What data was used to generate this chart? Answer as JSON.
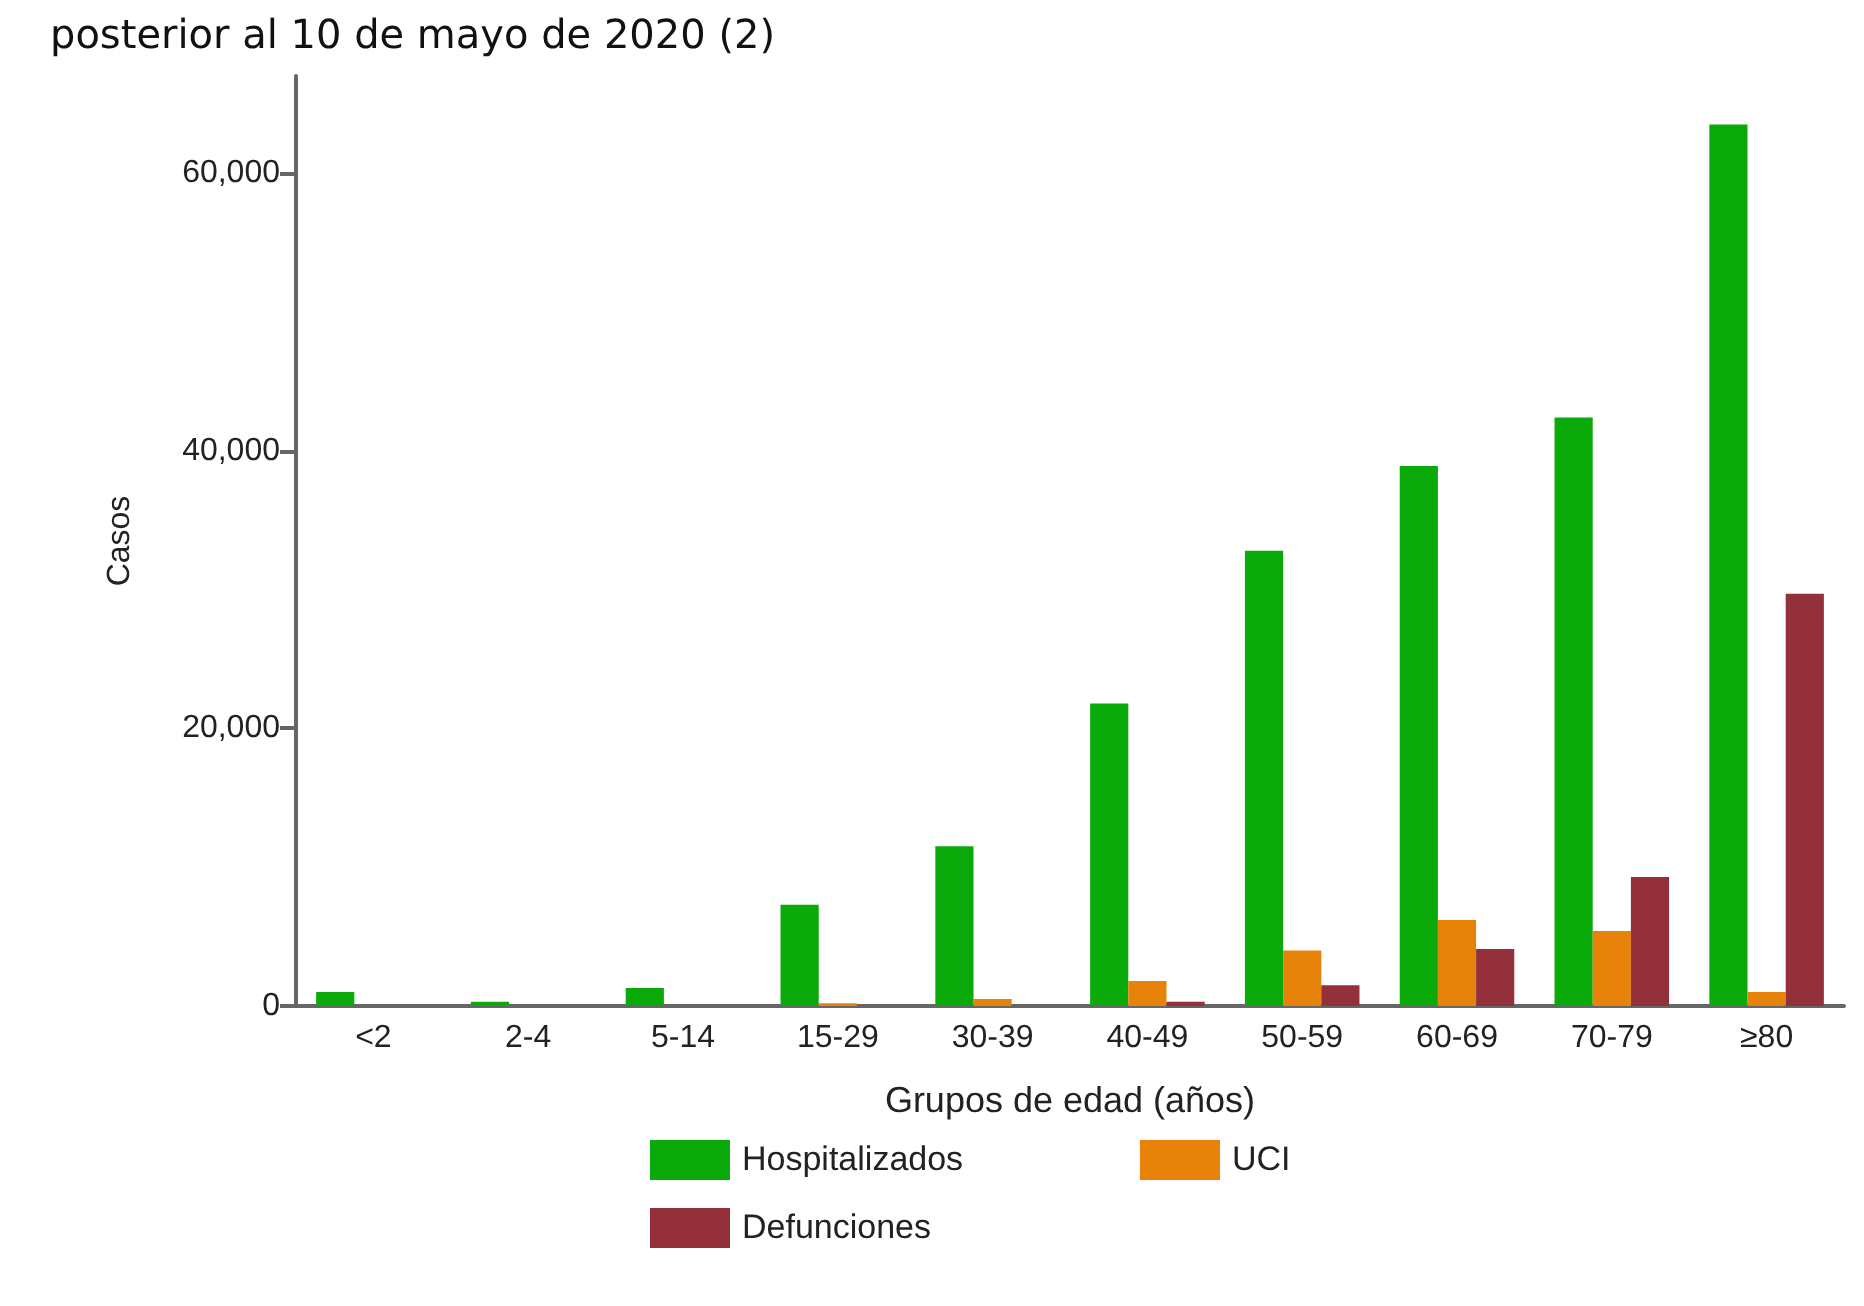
{
  "chart_data": {
    "type": "bar",
    "title": "posterior al 10 de mayo de 2020 (2)",
    "xlabel": "Grupos de edad (años)",
    "ylabel": "Casos",
    "categories": [
      "<2",
      "2-4",
      "5-14",
      "15-29",
      "30-39",
      "40-49",
      "50-59",
      "60-69",
      "70-79",
      "≥80"
    ],
    "series": [
      {
        "name": "Hospitalizados",
        "color": "#0aaa0a",
        "values": [
          1000,
          300,
          1300,
          7300,
          11500,
          21800,
          32800,
          38900,
          42400,
          63500
        ]
      },
      {
        "name": "UCI",
        "color": "#e8830a",
        "values": [
          0,
          0,
          0,
          200,
          500,
          1800,
          4000,
          6200,
          5400,
          1000
        ]
      },
      {
        "name": "Defunciones",
        "color": "#93303a",
        "values": [
          0,
          0,
          0,
          null,
          null,
          300,
          1500,
          4100,
          9300,
          29700
        ]
      }
    ],
    "ylim": [
      0,
      67000
    ],
    "yticks": [
      0,
      {
        "value": 20000,
        "label": "20,000"
      },
      {
        "value": 40000,
        "label": "40,000"
      },
      {
        "value": 60000,
        "label": "60,000"
      }
    ],
    "grid": false,
    "legend": "bottom"
  }
}
